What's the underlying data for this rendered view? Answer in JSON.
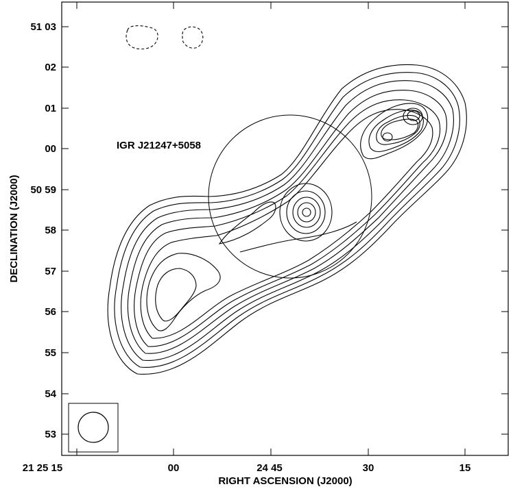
{
  "chart_data": {
    "type": "contour",
    "title": "",
    "xlabel": "RIGHT ASCENSION (J2000)",
    "ylabel": "DECLINATION (J2000)",
    "x_tick_labels": [
      "21 25 15",
      "00",
      "24 45",
      "30",
      "15"
    ],
    "y_tick_labels": [
      "51 03",
      "02",
      "01",
      "00",
      "50 59",
      "58",
      "57",
      "56",
      "55",
      "54",
      "53"
    ],
    "annotation": "IGR J21247+5058",
    "grid": false,
    "features": [
      "restoring-beam",
      "error-circle",
      "negative-contours"
    ]
  }
}
